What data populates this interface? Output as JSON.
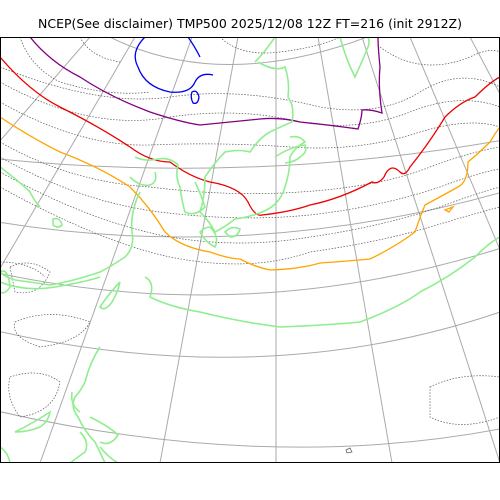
{
  "title": "NCEP(See disclaimer) TMP500 2025/12/08 12Z FT=216 (init 2912Z)",
  "map": {
    "projection": "polar-stereographic",
    "layers": [
      {
        "name": "coastlines",
        "color": "#90ee90"
      },
      {
        "name": "graticule",
        "color": "#aaaaaa"
      },
      {
        "name": "temperature-contours-minor",
        "color": "#555555",
        "style": "dotted"
      },
      {
        "name": "contour-blue",
        "color": "#0000ee"
      },
      {
        "name": "contour-purple",
        "color": "#800080"
      },
      {
        "name": "contour-red",
        "color": "#ee0000"
      },
      {
        "name": "contour-orange",
        "color": "#ffa500"
      }
    ]
  }
}
